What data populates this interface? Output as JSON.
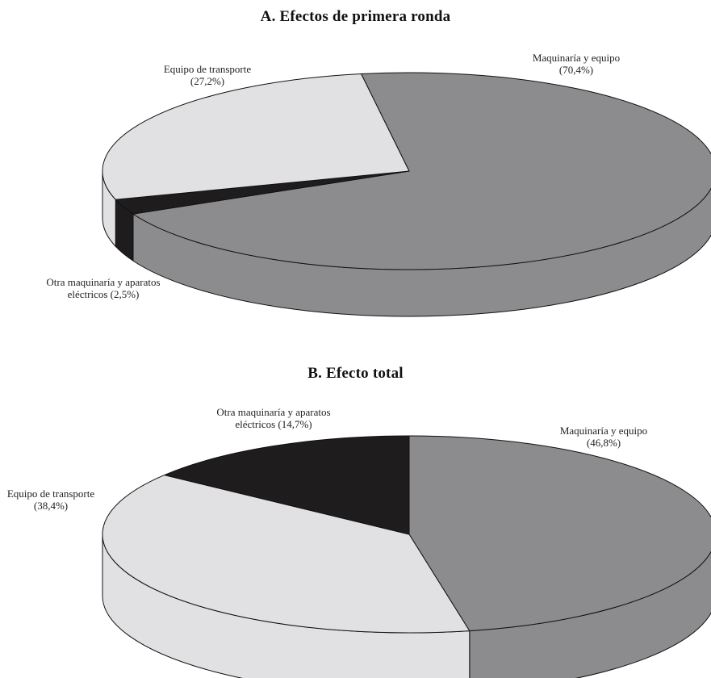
{
  "chart_data": [
    {
      "type": "pie",
      "title": "A. Efectos de primera ronda",
      "slices": [
        {
          "label_lines": [
            "Maquinaría y equipo",
            "(70,4%)"
          ],
          "value": 70.4,
          "color": "#8c8c8e"
        },
        {
          "label_lines": [
            "Otra maquinaría y aparatos",
            "eléctricos (2,5%)"
          ],
          "value": 2.5,
          "color": "#1f1c1d"
        },
        {
          "label_lines": [
            "Equipo de transporte",
            "(27,2%)"
          ],
          "value": 27.2,
          "color": "#e1e1e3"
        }
      ]
    },
    {
      "type": "pie",
      "title": "B. Efecto total",
      "slices": [
        {
          "label_lines": [
            "Maquinaría y equipo",
            "(46,8%)"
          ],
          "value": 46.8,
          "color": "#8c8c8e"
        },
        {
          "label_lines": [
            "Equipo de transporte",
            "(38,4%)"
          ],
          "value": 38.4,
          "color": "#e1e1e3"
        },
        {
          "label_lines": [
            "Otra maquinaría y aparatos",
            "eléctricos (14,7%)"
          ],
          "value": 14.7,
          "color": "#1f1c1d"
        }
      ]
    }
  ]
}
